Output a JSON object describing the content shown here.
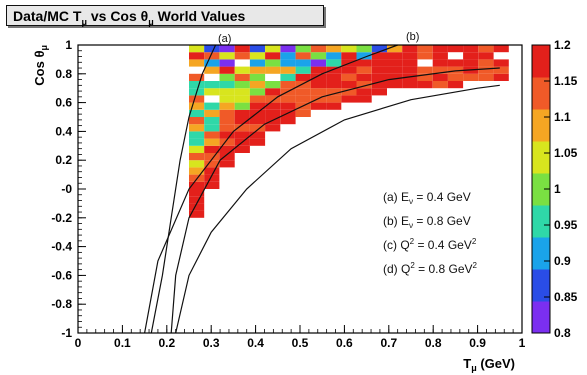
{
  "chart_data": {
    "type": "heatmap",
    "title": "Data/MC Tμ vs Cos θμ World Values",
    "title_parts": {
      "a": "Data/MC T",
      "b": "μ",
      "c": " vs Cos θ",
      "d": "μ",
      "e": " World Values"
    },
    "xlabel": {
      "main": "T",
      "sub": "μ",
      "rest": " (GeV)"
    },
    "ylabel": {
      "main": "Cos θ",
      "sub": "μ"
    },
    "xlim": [
      0,
      1
    ],
    "ylim": [
      -1,
      1
    ],
    "x_ticks": [
      {
        "v": 0,
        "label": "0"
      },
      {
        "v": 0.1,
        "label": "0.1"
      },
      {
        "v": 0.2,
        "label": "0.2"
      },
      {
        "v": 0.3,
        "label": "0.3"
      },
      {
        "v": 0.4,
        "label": "0.4"
      },
      {
        "v": 0.5,
        "label": "0.5"
      },
      {
        "v": 0.6,
        "label": "0.6"
      },
      {
        "v": 0.7,
        "label": "0.7"
      },
      {
        "v": 0.8,
        "label": "0.8"
      },
      {
        "v": 0.9,
        "label": "0.9"
      },
      {
        "v": 1,
        "label": "1"
      }
    ],
    "y_ticks": [
      {
        "v": 1,
        "label": "1"
      },
      {
        "v": 0.8,
        "label": "0.8"
      },
      {
        "v": 0.6,
        "label": "0.6"
      },
      {
        "v": 0.4,
        "label": "0.4"
      },
      {
        "v": 0.2,
        "label": "0.2"
      },
      {
        "v": 0,
        "label": "-0"
      },
      {
        "v": -0.2,
        "label": "-0.2"
      },
      {
        "v": -0.4,
        "label": "-0.4"
      },
      {
        "v": -0.6,
        "label": "-0.6"
      },
      {
        "v": -0.8,
        "label": "-0.8"
      },
      {
        "v": -1,
        "label": "-1"
      }
    ],
    "colorbar": {
      "min": 0.8,
      "max": 1.2,
      "ticks": [
        {
          "v": 1.2,
          "label": "1.2"
        },
        {
          "v": 1.15,
          "label": "1.15"
        },
        {
          "v": 1.1,
          "label": "1.1"
        },
        {
          "v": 1.05,
          "label": "1.05"
        },
        {
          "v": 1,
          "label": "1"
        },
        {
          "v": 0.95,
          "label": "0.95"
        },
        {
          "v": 0.9,
          "label": "0.9"
        },
        {
          "v": 0.85,
          "label": "0.85"
        },
        {
          "v": 0.8,
          "label": "0.8"
        }
      ],
      "colors": [
        "#7b2ff0",
        "#2a4de6",
        "#1aa3ea",
        "#2fd8a8",
        "#7ae042",
        "#d8e51e",
        "#f5a623",
        "#f05a28",
        "#e3201b"
      ]
    },
    "bins": {
      "x_start": 0.25,
      "x_width": 0.0343,
      "y_start": -1,
      "y_width": 0.05
    },
    "grid": false,
    "legend_position": "right-middle",
    "legend": [
      {
        "id": "(a)",
        "kind": "E",
        "sub": "ν",
        "text": " = 0.4 GeV",
        "sup": ""
      },
      {
        "id": "(b)",
        "kind": "E",
        "sub": "ν",
        "text": " = 0.8 GeV",
        "sup": ""
      },
      {
        "id": "(c)",
        "kind": "Q",
        "sub": "",
        "text": " = 0.4 GeV",
        "sup": "2"
      },
      {
        "id": "(d)",
        "kind": "Q",
        "sub": "",
        "text": " = 0.8 GeV",
        "sup": "2"
      }
    ],
    "curves": [
      {
        "id": "(a)",
        "points": [
          [
            0.165,
            -1
          ],
          [
            0.19,
            -0.6
          ],
          [
            0.21,
            -0.2
          ],
          [
            0.23,
            0.2
          ],
          [
            0.25,
            0.5
          ],
          [
            0.28,
            0.8
          ],
          [
            0.31,
            1.0
          ]
        ]
      },
      {
        "id": "(b)",
        "points": [
          [
            0.15,
            -1
          ],
          [
            0.18,
            -0.5
          ],
          [
            0.25,
            0
          ],
          [
            0.35,
            0.4
          ],
          [
            0.45,
            0.64
          ],
          [
            0.55,
            0.8
          ],
          [
            0.65,
            0.92
          ],
          [
            0.72,
            1.0
          ]
        ]
      },
      {
        "id": "(c)",
        "points": [
          [
            0.21,
            -1
          ],
          [
            0.22,
            -0.6
          ],
          [
            0.25,
            -0.2
          ],
          [
            0.32,
            0.2
          ],
          [
            0.42,
            0.45
          ],
          [
            0.55,
            0.64
          ],
          [
            0.7,
            0.76
          ],
          [
            0.85,
            0.82
          ],
          [
            0.95,
            0.84
          ]
        ]
      },
      {
        "id": "(d)",
        "points": [
          [
            0.22,
            -1
          ],
          [
            0.25,
            -0.6
          ],
          [
            0.3,
            -0.3
          ],
          [
            0.38,
            0
          ],
          [
            0.48,
            0.28
          ],
          [
            0.6,
            0.48
          ],
          [
            0.75,
            0.62
          ],
          [
            0.9,
            0.7
          ],
          [
            0.95,
            0.72
          ]
        ]
      }
    ]
  }
}
